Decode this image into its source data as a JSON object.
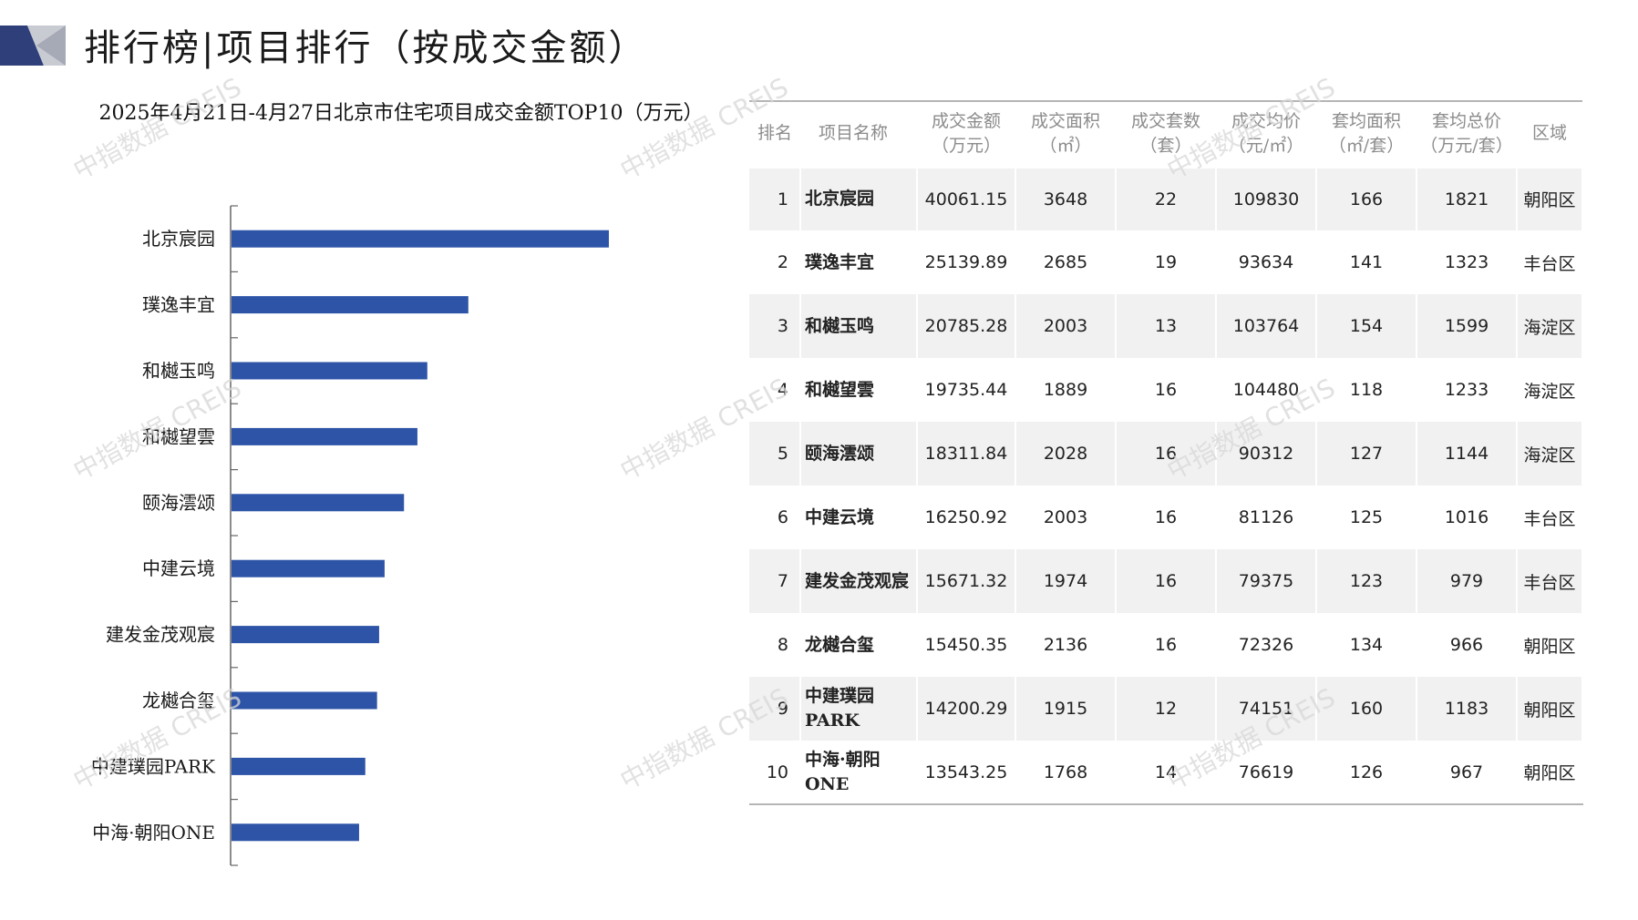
{
  "header": {
    "title": "排行榜|项目排行（按成交金额）"
  },
  "colors": {
    "bar": "#2e54a8",
    "logo_dark": "#2e3f7a",
    "logo_light": "#c9cbd3",
    "axis": "#666666"
  },
  "chart_data": {
    "type": "bar",
    "orientation": "horizontal",
    "title": "2025年4月21日-4月27日北京市住宅项目成交金额TOP10（万元）",
    "categories": [
      "北京宸园",
      "璞逸丰宜",
      "和樾玉鸣",
      "和樾望雲",
      "颐海澐颂",
      "中建云境",
      "建发金茂观宸",
      "龙樾合玺",
      "中建璞园PARK",
      "中海·朝阳ONE"
    ],
    "values": [
      40061.15,
      25139.89,
      20785.28,
      19735.44,
      18311.84,
      16250.92,
      15671.32,
      15450.35,
      14200.29,
      13543.25
    ],
    "xlim": [
      0,
      45000
    ],
    "grid": false
  },
  "table": {
    "columns": [
      {
        "line1": "排名",
        "line2": ""
      },
      {
        "line1": "项目名称",
        "line2": ""
      },
      {
        "line1": "成交金额",
        "line2": "（万元）"
      },
      {
        "line1": "成交面积",
        "line2": "（㎡）"
      },
      {
        "line1": "成交套数",
        "line2": "（套）"
      },
      {
        "line1": "成交均价",
        "line2": "（元/㎡）"
      },
      {
        "line1": "套均面积",
        "line2": "（㎡/套）"
      },
      {
        "line1": "套均总价",
        "line2": "（万元/套）"
      },
      {
        "line1": "区域",
        "line2": ""
      }
    ],
    "rows": [
      [
        "1",
        "北京宸园",
        "40061.15",
        "3648",
        "22",
        "109830",
        "166",
        "1821",
        "朝阳区"
      ],
      [
        "2",
        "璞逸丰宜",
        "25139.89",
        "2685",
        "19",
        "93634",
        "141",
        "1323",
        "丰台区"
      ],
      [
        "3",
        "和樾玉鸣",
        "20785.28",
        "2003",
        "13",
        "103764",
        "154",
        "1599",
        "海淀区"
      ],
      [
        "4",
        "和樾望雲",
        "19735.44",
        "1889",
        "16",
        "104480",
        "118",
        "1233",
        "海淀区"
      ],
      [
        "5",
        "颐海澐颂",
        "18311.84",
        "2028",
        "16",
        "90312",
        "127",
        "1144",
        "海淀区"
      ],
      [
        "6",
        "中建云境",
        "16250.92",
        "2003",
        "16",
        "81126",
        "125",
        "1016",
        "丰台区"
      ],
      [
        "7",
        "建发金茂观宸",
        "15671.32",
        "1974",
        "16",
        "79375",
        "123",
        "979",
        "丰台区"
      ],
      [
        "8",
        "龙樾合玺",
        "15450.35",
        "2136",
        "16",
        "72326",
        "134",
        "966",
        "朝阳区"
      ],
      [
        "9",
        "中建璞园PARK",
        "14200.29",
        "1915",
        "12",
        "74151",
        "160",
        "1183",
        "朝阳区"
      ],
      [
        "10",
        "中海·朝阳ONE",
        "13543.25",
        "1768",
        "14",
        "76619",
        "126",
        "967",
        "朝阳区"
      ]
    ]
  },
  "watermark": "中指数据 CREIS"
}
